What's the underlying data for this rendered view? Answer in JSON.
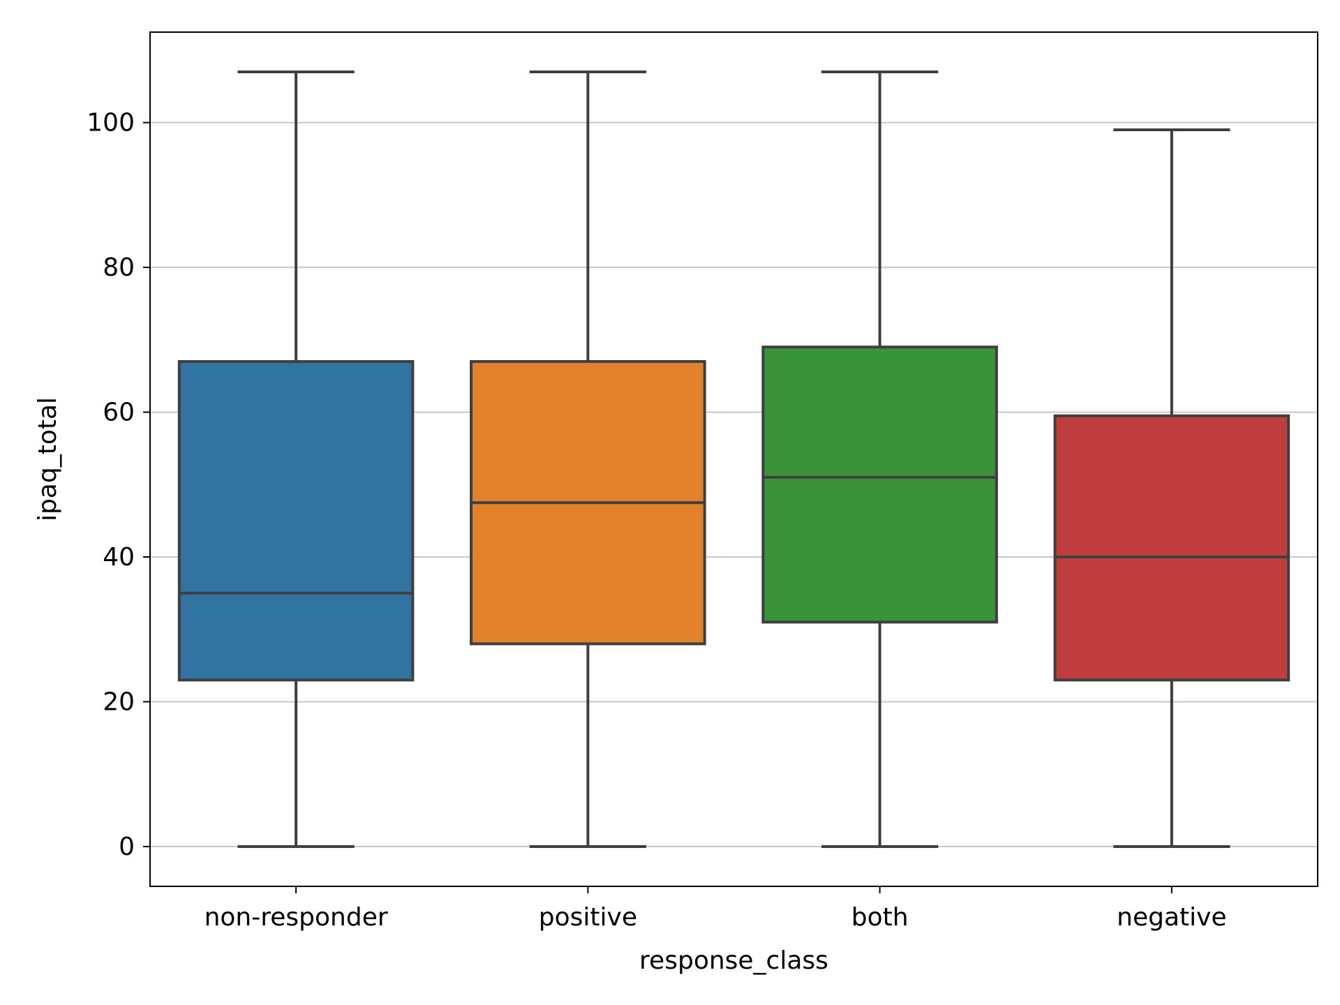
{
  "chart_data": {
    "type": "box",
    "title": "",
    "xlabel": "response_class",
    "ylabel": "ipaq_total",
    "ylim": [
      -5.5,
      112.5
    ],
    "yticks": [
      0,
      20,
      40,
      60,
      80,
      100
    ],
    "grid": "horizontal",
    "categories": [
      "non-responder",
      "positive",
      "both",
      "negative"
    ],
    "boxes": [
      {
        "category": "non-responder",
        "min": 0,
        "q1": 23,
        "median": 35,
        "q3": 67,
        "max": 107,
        "color": "#3274a1"
      },
      {
        "category": "positive",
        "min": 0,
        "q1": 28,
        "median": 47.5,
        "q3": 67,
        "max": 107,
        "color": "#e1812c"
      },
      {
        "category": "both",
        "min": 0,
        "q1": 31,
        "median": 51,
        "q3": 69,
        "max": 107,
        "color": "#3a923a"
      },
      {
        "category": "negative",
        "min": 0,
        "q1": 23,
        "median": 40,
        "q3": 59.5,
        "max": 99,
        "color": "#c03d3e"
      }
    ],
    "line_color": "#3f3f3f",
    "grid_color": "#c8c8c8"
  }
}
